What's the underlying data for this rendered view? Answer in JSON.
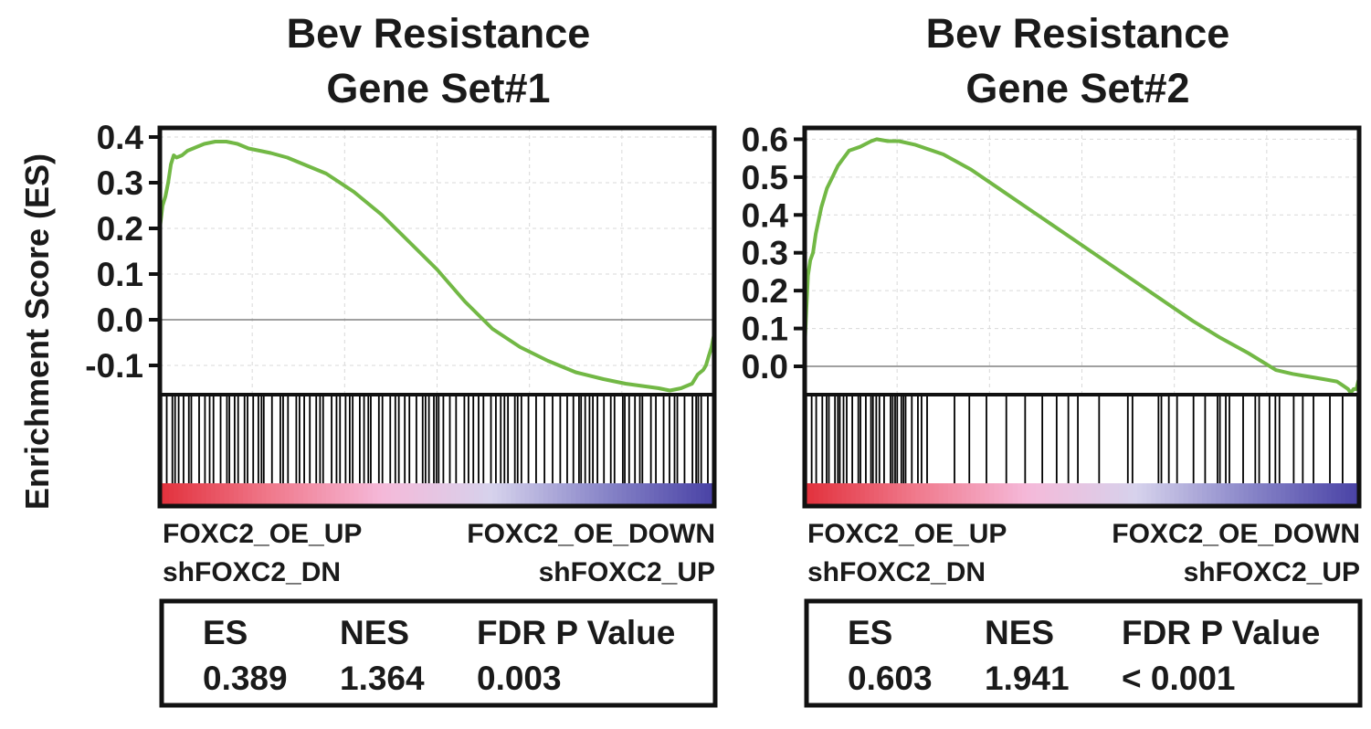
{
  "figure": {
    "ylabel": "Enrichment Score (ES)"
  },
  "chart_data": [
    {
      "type": "line",
      "title": [
        "Bev Resistance",
        "Gene Set#1"
      ],
      "ylabel": "Enrichment Score (ES)",
      "xlabel": "",
      "xlim": [
        0,
        100
      ],
      "ylim": [
        -0.16,
        0.42
      ],
      "yticks": [
        0.4,
        0.3,
        0.2,
        0.1,
        0.0,
        -0.1
      ],
      "ytick_labels": [
        "0.4",
        "0.3",
        "0.2",
        "0.1",
        "0.0",
        "-0.1"
      ],
      "grid": true,
      "line_color": "#72b845",
      "series": [
        {
          "x": [
            0,
            0.5,
            1,
            1.5,
            2,
            2.5,
            3,
            4,
            5,
            6,
            8,
            10,
            12,
            14,
            16,
            18,
            20,
            23,
            26,
            30,
            35,
            40,
            45,
            50,
            55,
            60,
            65,
            70,
            75,
            80,
            84,
            87,
            90,
            92,
            94,
            95,
            96,
            97,
            97.5,
            98,
            98.5,
            99,
            99.5,
            100
          ],
          "y": [
            0.2,
            0.25,
            0.27,
            0.3,
            0.34,
            0.36,
            0.355,
            0.36,
            0.37,
            0.375,
            0.385,
            0.39,
            0.39,
            0.385,
            0.375,
            0.37,
            0.365,
            0.355,
            0.34,
            0.32,
            0.28,
            0.23,
            0.17,
            0.11,
            0.04,
            -0.02,
            -0.06,
            -0.09,
            -0.115,
            -0.13,
            -0.14,
            -0.145,
            -0.15,
            -0.155,
            -0.15,
            -0.145,
            -0.14,
            -0.12,
            -0.115,
            -0.11,
            -0.1,
            -0.08,
            -0.06,
            -0.03
          ]
        }
      ],
      "hit_colors": [
        "#e2323d",
        "#f07a8d",
        "#f5b9d9",
        "#d6d2ec",
        "#8a87c9",
        "#4a43a6"
      ],
      "phenotype_left": [
        "FOXC2_OE_UP",
        "shFOXC2_DN"
      ],
      "phenotype_right": [
        "FOXC2_OE_DOWN",
        "shFOXC2_UP"
      ],
      "stats": {
        "headers": [
          "ES",
          "NES",
          "FDR P Value"
        ],
        "values": [
          "0.389",
          "1.364",
          "0.003"
        ]
      }
    },
    {
      "type": "line",
      "title": [
        "Bev Resistance",
        "Gene Set#2"
      ],
      "ylabel": "Enrichment Score (ES)",
      "xlabel": "",
      "xlim": [
        0,
        100
      ],
      "ylim": [
        -0.07,
        0.63
      ],
      "yticks": [
        0.6,
        0.5,
        0.4,
        0.3,
        0.2,
        0.1,
        0.0
      ],
      "ytick_labels": [
        "0.6",
        "0.5",
        "0.4",
        "0.3",
        "0.2",
        "0.1",
        "0.0"
      ],
      "grid": true,
      "line_color": "#72b845",
      "series": [
        {
          "x": [
            0,
            0.3,
            0.6,
            1,
            1.5,
            2,
            3,
            4,
            5,
            6,
            7,
            8,
            10,
            12,
            13,
            15,
            17,
            20,
            25,
            30,
            35,
            40,
            45,
            50,
            55,
            60,
            65,
            70,
            75,
            80,
            85,
            88,
            90,
            92,
            94,
            96,
            97,
            98,
            98.5,
            99,
            99.5,
            100
          ],
          "y": [
            0.05,
            0.15,
            0.24,
            0.28,
            0.3,
            0.35,
            0.42,
            0.47,
            0.5,
            0.53,
            0.55,
            0.57,
            0.58,
            0.595,
            0.6,
            0.595,
            0.595,
            0.585,
            0.56,
            0.52,
            0.47,
            0.42,
            0.37,
            0.32,
            0.27,
            0.22,
            0.17,
            0.12,
            0.075,
            0.035,
            -0.01,
            -0.02,
            -0.025,
            -0.03,
            -0.035,
            -0.04,
            -0.05,
            -0.06,
            -0.07,
            -0.06,
            -0.06,
            -0.03
          ]
        }
      ],
      "hit_colors": [
        "#e2323d",
        "#f07a8d",
        "#f5b9d9",
        "#d6d2ec",
        "#8a87c9",
        "#4a43a6"
      ],
      "phenotype_left": [
        "FOXC2_OE_UP",
        "shFOXC2_DN"
      ],
      "phenotype_right": [
        "FOXC2_OE_DOWN",
        "shFOXC2_UP"
      ],
      "stats": {
        "headers": [
          "ES",
          "NES",
          "FDR P Value"
        ],
        "values": [
          "0.603",
          "1.941",
          "< 0.001"
        ]
      }
    }
  ]
}
